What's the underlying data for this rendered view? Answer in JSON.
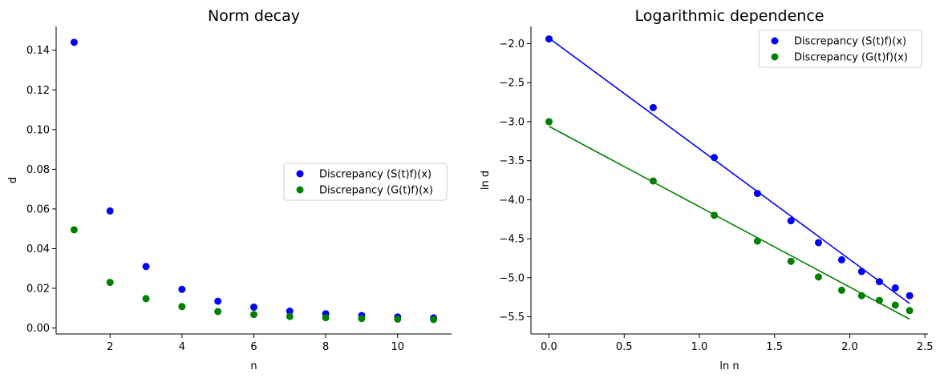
{
  "colors": {
    "series1": "#0000ff",
    "series2": "#008000"
  },
  "chart_data": [
    {
      "type": "scatter",
      "title": "Norm decay",
      "xlabel": "n",
      "ylabel": "d",
      "xlim": [
        0.5,
        11.5
      ],
      "ylim": [
        -0.003,
        0.152
      ],
      "xticks": [
        2,
        4,
        6,
        8,
        10
      ],
      "yticks": [
        0.0,
        0.02,
        0.04,
        0.06,
        0.08,
        0.1,
        0.12,
        0.14
      ],
      "xtick_labels": [
        "2",
        "4",
        "6",
        "8",
        "10"
      ],
      "ytick_labels": [
        "0.00",
        "0.02",
        "0.04",
        "0.06",
        "0.08",
        "0.10",
        "0.12",
        "0.14"
      ],
      "legend_position": "center-right",
      "series": [
        {
          "name": "Discrepancy (S(t)f)(x)",
          "color": "#0000ff",
          "x": [
            1,
            2,
            3,
            4,
            5,
            6,
            7,
            8,
            9,
            10,
            11
          ],
          "y": [
            0.144,
            0.059,
            0.031,
            0.0195,
            0.0135,
            0.0105,
            0.0085,
            0.0072,
            0.0063,
            0.0056,
            0.0051
          ]
        },
        {
          "name": "Discrepancy (G(t)f)(x)",
          "color": "#008000",
          "x": [
            1,
            2,
            3,
            4,
            5,
            6,
            7,
            8,
            9,
            10,
            11
          ],
          "y": [
            0.0495,
            0.023,
            0.0148,
            0.0108,
            0.0083,
            0.0068,
            0.0058,
            0.0052,
            0.0048,
            0.0045,
            0.0043
          ]
        }
      ]
    },
    {
      "type": "scatter",
      "title": "Logarithmic dependence",
      "xlabel": "ln n",
      "ylabel": "ln d",
      "xlim": [
        -0.12,
        2.52
      ],
      "ylim": [
        -5.72,
        -1.78
      ],
      "xticks": [
        0.0,
        0.5,
        1.0,
        1.5,
        2.0,
        2.5
      ],
      "yticks": [
        -2.0,
        -2.5,
        -3.0,
        -3.5,
        -4.0,
        -4.5,
        -5.0,
        -5.5
      ],
      "xtick_labels": [
        "0.0",
        "0.5",
        "1.0",
        "1.5",
        "2.0",
        "2.5"
      ],
      "ytick_labels": [
        "−2.0",
        "−2.5",
        "−3.0",
        "−3.5",
        "−4.0",
        "−4.5",
        "−5.0",
        "−5.5"
      ],
      "legend_position": "top-right",
      "series": [
        {
          "name": "Discrepancy (S(t)f)(x)",
          "color": "#0000ff",
          "x": [
            0.0,
            0.693,
            1.099,
            1.386,
            1.609,
            1.792,
            1.946,
            2.079,
            2.197,
            2.303,
            2.398
          ],
          "y": [
            -1.94,
            -2.82,
            -3.46,
            -3.92,
            -4.27,
            -4.55,
            -4.77,
            -4.92,
            -5.05,
            -5.13,
            -5.23
          ],
          "fit_line": {
            "x": [
              0.0,
              2.398
            ],
            "y": [
              -1.93,
              -5.33
            ]
          }
        },
        {
          "name": "Discrepancy (G(t)f)(x)",
          "color": "#008000",
          "x": [
            0.0,
            0.693,
            1.099,
            1.386,
            1.609,
            1.792,
            1.946,
            2.079,
            2.197,
            2.303,
            2.398
          ],
          "y": [
            -3.0,
            -3.76,
            -4.2,
            -4.53,
            -4.79,
            -4.99,
            -5.16,
            -5.23,
            -5.29,
            -5.35,
            -5.42
          ],
          "fit_line": {
            "x": [
              0.0,
              2.398
            ],
            "y": [
              -3.06,
              -5.53
            ]
          }
        }
      ]
    }
  ]
}
